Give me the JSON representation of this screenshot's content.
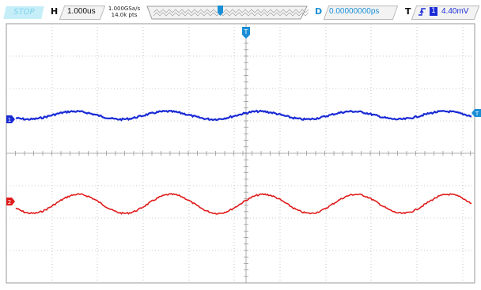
{
  "status": {
    "run_state": "STOP"
  },
  "horizontal": {
    "label": "H",
    "timebase": "1.000us"
  },
  "acquisition": {
    "sample_rate": "1.000GSa/s",
    "points": "14.0k pts"
  },
  "delay": {
    "label": "D",
    "value": "0.00000000ps"
  },
  "trigger": {
    "label": "T",
    "source": "1",
    "level": "4.40mV"
  },
  "channels": [
    {
      "id": "1",
      "color": "#1a2bd6"
    },
    {
      "id": "2",
      "color": "#e01a1a"
    }
  ],
  "markers": {
    "trigger_position": "T"
  },
  "colors": {
    "run_state_bg": "#c6eef8",
    "run_state_text": "#7fd3ec",
    "grid": "#b0b0b0",
    "accent": "#1a8fd6"
  }
}
